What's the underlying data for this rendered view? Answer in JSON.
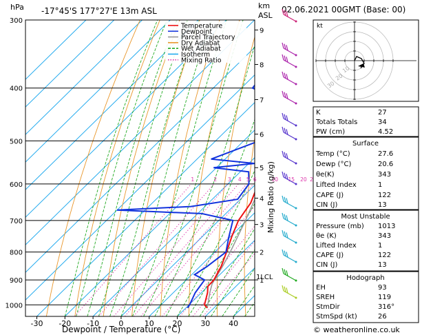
{
  "header": {
    "hpa_label": "hPa",
    "location": "-17°45'S  177°27'E  13m  ASL",
    "km_label": "km",
    "asl_label": "ASL",
    "datetime": "02.06.2021  00GMT  (Base: 00)"
  },
  "chart_data": {
    "type": "skew-t",
    "xlabel": "Dewpoint / Temperature (°C)",
    "ylabel_right": "Mixing Ratio (g/kg)",
    "x_ticks": [
      -30,
      -20,
      -10,
      0,
      10,
      20,
      30,
      40
    ],
    "pressure_levels": [
      300,
      400,
      500,
      600,
      700,
      800,
      900,
      1000
    ],
    "km_ticks": [
      {
        "km": "9",
        "p": 313
      },
      {
        "km": "8",
        "p": 362
      },
      {
        "km": "7",
        "p": 420
      },
      {
        "km": "6",
        "p": 486
      },
      {
        "km": "5",
        "p": 560
      },
      {
        "km": "4",
        "p": 637
      },
      {
        "km": "3",
        "p": 712
      },
      {
        "km": "2",
        "p": 800
      },
      {
        "km": "1",
        "p": 900
      }
    ],
    "lcl_label": "1LCL",
    "mixing_ratio_labels": [
      "1",
      "2",
      "3",
      "4",
      "5",
      "6",
      "10",
      "15",
      "20",
      "25"
    ],
    "legend": [
      "Temperature",
      "Dewpoint",
      "Parcel Trajectory",
      "Dry Adiabat",
      "Wet Adiabat",
      "Isotherm",
      "Mixing Ratio"
    ],
    "colors": {
      "temperature": "#ee1111",
      "dewpoint": "#1133dd",
      "parcel": "#999999",
      "dry_adiabat": "#e8962a",
      "wet_adiabat": "#22aa22",
      "isotherm": "#22aaee",
      "mixing_ratio": "#dd33aa"
    },
    "temperature": [
      {
        "p": 1013,
        "t": 27.6
      },
      {
        "p": 1000,
        "t": 25.5
      },
      {
        "p": 950,
        "t": 22.2
      },
      {
        "p": 925,
        "t": 20.0
      },
      {
        "p": 900,
        "t": 19.8
      },
      {
        "p": 850,
        "t": 17.5
      },
      {
        "p": 800,
        "t": 14.2
      },
      {
        "p": 750,
        "t": 10.5
      },
      {
        "p": 700,
        "t": 7.0
      },
      {
        "p": 680,
        "t": 6.2
      },
      {
        "p": 650,
        "t": 5.0
      },
      {
        "p": 620,
        "t": 2.5
      },
      {
        "p": 600,
        "t": 0.5
      },
      {
        "p": 550,
        "t": -3.5
      },
      {
        "p": 500,
        "t": -7.5
      },
      {
        "p": 450,
        "t": -13.0
      },
      {
        "p": 400,
        "t": -19.0
      },
      {
        "p": 370,
        "t": -23.0
      },
      {
        "p": 350,
        "t": -27.5
      },
      {
        "p": 330,
        "t": -31.0
      },
      {
        "p": 310,
        "t": -35.5
      },
      {
        "p": 300,
        "t": -37.5
      }
    ],
    "dewpoint": [
      {
        "p": 1013,
        "t": 20.6
      },
      {
        "p": 1000,
        "t": 20.2
      },
      {
        "p": 950,
        "t": 17.8
      },
      {
        "p": 900,
        "t": 16.5
      },
      {
        "p": 880,
        "t": 11.0
      },
      {
        "p": 850,
        "t": 12.5
      },
      {
        "p": 800,
        "t": 14.0
      },
      {
        "p": 750,
        "t": 9.5
      },
      {
        "p": 700,
        "t": 5.0
      },
      {
        "p": 680,
        "t": -8.5
      },
      {
        "p": 670,
        "t": -40.0
      },
      {
        "p": 660,
        "t": -15.0
      },
      {
        "p": 640,
        "t": -1.0
      },
      {
        "p": 600,
        "t": -2.5
      },
      {
        "p": 570,
        "t": -7.0
      },
      {
        "p": 560,
        "t": -21.0
      },
      {
        "p": 550,
        "t": -8.0
      },
      {
        "p": 540,
        "t": -25.0
      },
      {
        "p": 500,
        "t": -14.5
      },
      {
        "p": 450,
        "t": -14.5
      },
      {
        "p": 420,
        "t": -23.0
      },
      {
        "p": 400,
        "t": -36.0
      },
      {
        "p": 380,
        "t": -37.0
      },
      {
        "p": 340,
        "t": -42.0
      },
      {
        "p": 320,
        "t": -40.0
      },
      {
        "p": 310,
        "t": -44.0
      },
      {
        "p": 300,
        "t": -55.0
      }
    ],
    "parcel": [
      {
        "p": 1013,
        "t": 27.6
      },
      {
        "p": 950,
        "t": 23.0
      },
      {
        "p": 915,
        "t": 20.6
      },
      {
        "p": 850,
        "t": 18.0
      },
      {
        "p": 800,
        "t": 15.5
      },
      {
        "p": 700,
        "t": 9.5
      },
      {
        "p": 600,
        "t": 2.0
      },
      {
        "p": 500,
        "t": -6.5
      },
      {
        "p": 400,
        "t": -18.0
      },
      {
        "p": 350,
        "t": -25.5
      },
      {
        "p": 300,
        "t": -34.0
      }
    ],
    "xlim": [
      -40,
      43
    ]
  },
  "hodograph": {
    "label": "kt",
    "ring_labels": [
      "10",
      "20",
      "30"
    ]
  },
  "indices": [
    {
      "label": "K",
      "value": "27"
    },
    {
      "label": "Totals Totals",
      "value": "34"
    },
    {
      "label": "PW (cm)",
      "value": "4.52"
    }
  ],
  "surface": {
    "title": "Surface",
    "rows": [
      {
        "label": "Temp (°C)",
        "value": "27.6"
      },
      {
        "label": "Dewp (°C)",
        "value": "20.6"
      },
      {
        "label": "θe(K)",
        "value": "343"
      },
      {
        "label": "Lifted Index",
        "value": "1"
      },
      {
        "label": "CAPE (J)",
        "value": "122"
      },
      {
        "label": "CIN (J)",
        "value": "13"
      }
    ]
  },
  "most_unstable": {
    "title": "Most Unstable",
    "rows": [
      {
        "label": "Pressure (mb)",
        "value": "1013"
      },
      {
        "label": "θe (K)",
        "value": "343"
      },
      {
        "label": "Lifted Index",
        "value": "1"
      },
      {
        "label": "CAPE (J)",
        "value": "122"
      },
      {
        "label": "CIN (J)",
        "value": "13"
      }
    ]
  },
  "hodograph_table": {
    "title": "Hodograph",
    "rows": [
      {
        "label": "EH",
        "value": "93"
      },
      {
        "label": "SREH",
        "value": "119"
      },
      {
        "label": "StmDir",
        "value": "316°"
      },
      {
        "label": "StmSpd (kt)",
        "value": "26"
      }
    ]
  },
  "footer": {
    "copyright": "© weatheronline.co.uk"
  }
}
